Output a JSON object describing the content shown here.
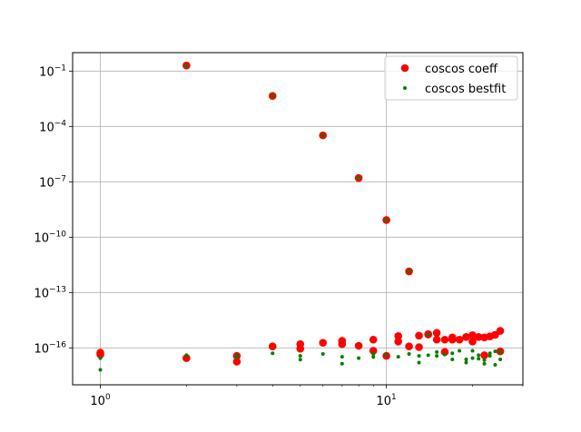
{
  "chart_data": {
    "type": "scatter",
    "title": "",
    "xlabel": "",
    "ylabel": "",
    "x_scale": "log",
    "y_scale": "log",
    "xlim": [
      0.8,
      30
    ],
    "ylim": [
      1e-18,
      1
    ],
    "grid": true,
    "legend_position": "top-right",
    "x_major_ticks": [
      {
        "value": 1,
        "base": "10",
        "exp": "0"
      },
      {
        "value": 10,
        "base": "10",
        "exp": "1"
      }
    ],
    "y_major_ticks": [
      {
        "value": 1e-16,
        "base": "10",
        "exp": "−16"
      },
      {
        "value": 1e-13,
        "base": "10",
        "exp": "−13"
      },
      {
        "value": 1e-10,
        "base": "10",
        "exp": "−10"
      },
      {
        "value": 1e-07,
        "base": "10",
        "exp": "−7"
      },
      {
        "value": 0.0001,
        "base": "10",
        "exp": "−4"
      },
      {
        "value": 0.1,
        "base": "10",
        "exp": "−1"
      }
    ],
    "series": [
      {
        "name": "coscos coeff",
        "color": "#ff0000",
        "marker": "large-circle",
        "points": [
          [
            1,
            5.5e-17
          ],
          [
            1,
            4.4e-17
          ],
          [
            2,
            0.2
          ],
          [
            2,
            2.8e-17
          ],
          [
            3,
            3.7e-17
          ],
          [
            3,
            1.8e-17
          ],
          [
            4,
            0.0045
          ],
          [
            4,
            1.2e-16
          ],
          [
            5,
            1.6e-16
          ],
          [
            5,
            9e-17
          ],
          [
            6,
            3.3e-05
          ],
          [
            6,
            1.9e-16
          ],
          [
            7,
            2.4e-16
          ],
          [
            7,
            1.6e-16
          ],
          [
            8,
            1.6e-07
          ],
          [
            8,
            1.3e-16
          ],
          [
            9,
            2.8e-16
          ],
          [
            9,
            7e-17
          ],
          [
            10,
            8.5e-10
          ],
          [
            10,
            3.7e-17
          ],
          [
            11,
            4.4e-16
          ],
          [
            11,
            2.2e-16
          ],
          [
            12,
            1.4e-12
          ],
          [
            12,
            1.2e-16
          ],
          [
            13,
            4.6e-16
          ],
          [
            13,
            1.1e-16
          ],
          [
            14,
            5.6e-16
          ],
          [
            14,
            5.3e-16
          ],
          [
            15,
            6.5e-16
          ],
          [
            15,
            2.8e-16
          ],
          [
            16,
            2.8e-16
          ],
          [
            16,
            6e-17
          ],
          [
            17,
            3.7e-16
          ],
          [
            17,
            2.8e-16
          ],
          [
            18,
            2.8e-16
          ],
          [
            19,
            3.9e-16
          ],
          [
            20,
            4.9e-16
          ],
          [
            20,
            2.2e-16
          ],
          [
            21,
            3.9e-16
          ],
          [
            22,
            3.7e-16
          ],
          [
            22,
            4e-17
          ],
          [
            23,
            4.2e-16
          ],
          [
            24,
            5.1e-16
          ],
          [
            25,
            8.4e-16
          ],
          [
            25,
            6.5e-17
          ]
        ]
      },
      {
        "name": "coscos bestfit",
        "color": "#008000",
        "marker": "small-dot",
        "points": [
          [
            1,
            2.8e-17
          ],
          [
            1,
            6.5e-18
          ],
          [
            2,
            0.2
          ],
          [
            2,
            4e-17
          ],
          [
            3,
            4e-17
          ],
          [
            3,
            3.2e-17
          ],
          [
            4,
            0.0045
          ],
          [
            4,
            5.1e-17
          ],
          [
            5,
            3.7e-17
          ],
          [
            5,
            2.3e-17
          ],
          [
            6,
            3.3e-05
          ],
          [
            6,
            4.7e-17
          ],
          [
            7,
            3.3e-17
          ],
          [
            7,
            1.4e-17
          ],
          [
            8,
            1.6e-07
          ],
          [
            8,
            2.8e-17
          ],
          [
            9,
            4.7e-17
          ],
          [
            9,
            3.2e-17
          ],
          [
            10,
            8.5e-10
          ],
          [
            10,
            4.2e-17
          ],
          [
            11,
            3.3e-17
          ],
          [
            12,
            1.4e-12
          ],
          [
            12,
            4.7e-17
          ],
          [
            13,
            3.7e-17
          ],
          [
            13,
            1.6e-17
          ],
          [
            14,
            5.3e-16
          ],
          [
            14,
            4e-17
          ],
          [
            15,
            6e-17
          ],
          [
            15,
            3.7e-17
          ],
          [
            16,
            4.4e-17
          ],
          [
            17,
            5.1e-17
          ],
          [
            17,
            2.4e-17
          ],
          [
            18,
            7e-17
          ],
          [
            19,
            2.4e-17
          ],
          [
            19,
            1.6e-17
          ],
          [
            20,
            7e-17
          ],
          [
            20,
            2.8e-17
          ],
          [
            21,
            4e-17
          ],
          [
            21,
            2.6e-17
          ],
          [
            22,
            2.2e-17
          ],
          [
            22,
            1.4e-17
          ],
          [
            23,
            5.1e-17
          ],
          [
            23,
            3.7e-17
          ],
          [
            24,
            6.5e-17
          ],
          [
            24,
            1.2e-17
          ],
          [
            25,
            6e-17
          ],
          [
            25,
            2.4e-17
          ]
        ]
      }
    ]
  }
}
